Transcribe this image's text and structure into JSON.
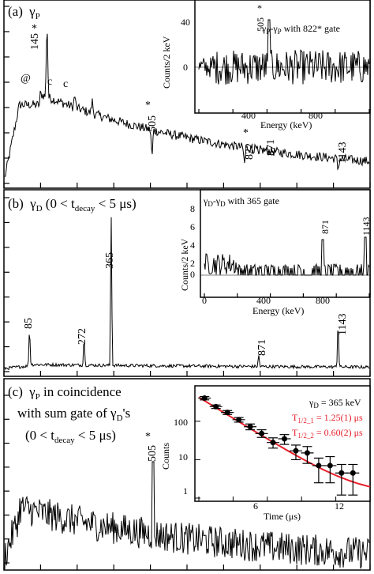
{
  "chart_data": [
    {
      "type": "line",
      "panel_label": "(a)",
      "title_main": "γ",
      "title_sub": "P",
      "annotations": [
        "145",
        "@",
        "c",
        "c",
        "505",
        "822",
        "871",
        "1143"
      ],
      "stars": [
        "*",
        "*",
        "*"
      ],
      "peaks": [
        {
          "label": "@",
          "x": 0.11,
          "y": 0.45
        },
        {
          "label": "145",
          "x": 0.145,
          "y": 0.88
        },
        {
          "label": "c",
          "x": 0.24,
          "y": 0.5
        },
        {
          "label": "c",
          "x": 0.3,
          "y": 0.47
        },
        {
          "label": "505",
          "x": 0.505,
          "y": 0.17
        },
        {
          "label": "822",
          "x": 0.822,
          "y": 0.13
        },
        {
          "label": "871",
          "x": 0.871,
          "y": 0.17
        },
        {
          "label": "1143",
          "x": 1.143,
          "y": 0.1
        }
      ],
      "inset": {
        "title_main": "γ",
        "title_sub1": "P",
        "title_mid": "-γ",
        "title_sub2": "P",
        "title_tail": " with 822* gate",
        "peak_label": "505",
        "peak_star": "*",
        "xlabel": "Energy (keV)",
        "ylabel": "Counts/2 keV",
        "xticks": [
          "400",
          "800"
        ],
        "yticks": [
          "0",
          "40"
        ]
      }
    },
    {
      "type": "line",
      "panel_label": "(b)",
      "title_main": "γ",
      "title_sub": "D",
      "title_paren_open": " (0 < t",
      "title_tsub": "decay",
      "title_paren_close": " < 5 μs)",
      "annotations": [
        "85",
        "272",
        "365",
        "871",
        "1143"
      ],
      "peaks": [
        {
          "label": "85",
          "x": 0.085,
          "y": 0.22
        },
        {
          "label": "272",
          "x": 0.272,
          "y": 0.17
        },
        {
          "label": "365",
          "x": 0.365,
          "y": 0.95
        },
        {
          "label": "871",
          "x": 0.871,
          "y": 0.07
        },
        {
          "label": "1143",
          "x": 1.143,
          "y": 0.28
        }
      ],
      "inset": {
        "title_main": "γ",
        "title_sub1": "D",
        "title_mid": "-γ",
        "title_sub2": "D",
        "title_tail": " with 365 gate",
        "peak_labels": [
          "871",
          "1143"
        ],
        "xlabel": "Energy (keV)",
        "ylabel": "Counts/2 keV",
        "xticks": [
          "0",
          "400",
          "800"
        ],
        "yticks": [
          "0",
          "2",
          "4",
          "6",
          "8"
        ]
      }
    },
    {
      "type": "line",
      "panel_label": "(c)",
      "title_line1_main": "γ",
      "title_line1_sub": "P",
      "title_line1_tail": " in coincidence",
      "title_line2": "with sum gate of γ",
      "title_line2_sub": "D",
      "title_line2_tail": "'s",
      "title_line3_open": "(0 < t",
      "title_line3_tsub": "decay",
      "title_line3_close": " < 5 μs)",
      "annotations": [
        "505"
      ],
      "stars": [
        "*"
      ],
      "inset": {
        "type": "scatter",
        "legend_main": "γ",
        "legend_sub": "D",
        "legend_tail": " = 365 keV",
        "fit1_pre": "T",
        "fit1_sub": "1/2_1",
        "fit1_post": " = 1.25(1) μs",
        "fit2_pre": "T",
        "fit2_sub": "1/2_2",
        "fit2_post": " = 0.60(2) μs",
        "fit_color": "#e8202a",
        "xlabel": "Time (μs)",
        "ylabel": "Counts",
        "xticks": [
          "6",
          "12"
        ],
        "yticks": [
          "1",
          "10",
          "100"
        ],
        "log_y": true,
        "xlim": [
          0,
          15
        ],
        "ylim": [
          1,
          600
        ],
        "x": [
          0.5,
          1.5,
          2.5,
          3.5,
          4.5,
          5.5,
          6.5,
          7.5,
          8.5,
          9.5,
          10.5,
          11.5,
          12.5,
          13.5
        ],
        "y": [
          400,
          240,
          170,
          110,
          72,
          48,
          28,
          35,
          17,
          15,
          7,
          7,
          4.5,
          4.5
        ],
        "yerr_lo": [
          360,
          215,
          150,
          95,
          60,
          38,
          20,
          25,
          10,
          8,
          2.5,
          2.5,
          1.2,
          1.2
        ],
        "yerr_hi": [
          440,
          265,
          190,
          125,
          85,
          60,
          37,
          45,
          24,
          22,
          11,
          12,
          7.5,
          7.5
        ]
      }
    }
  ]
}
